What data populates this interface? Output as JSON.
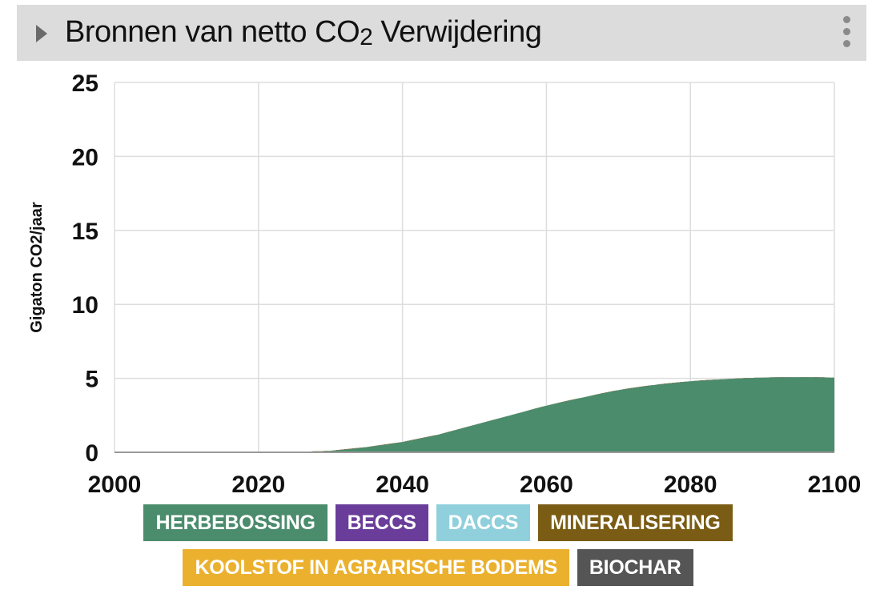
{
  "header": {
    "title_main": "Bronnen van netto CO",
    "title_sub": "2",
    "title_end": " Verwijdering"
  },
  "chart_data": {
    "type": "area",
    "title": "Bronnen van netto CO2 Verwijdering",
    "ylabel": "Gigaton CO2/jaar",
    "xlabel": "",
    "xlim": [
      2000,
      2100
    ],
    "ylim": [
      0,
      25
    ],
    "x_ticks": [
      2000,
      2020,
      2040,
      2060,
      2080,
      2100
    ],
    "y_ticks": [
      0,
      5,
      10,
      15,
      20,
      25
    ],
    "grid": true,
    "legend_position": "bottom",
    "x": [
      2000,
      2010,
      2020,
      2025,
      2030,
      2035,
      2040,
      2045,
      2050,
      2055,
      2060,
      2065,
      2070,
      2075,
      2080,
      2085,
      2090,
      2095,
      2100
    ],
    "series": [
      {
        "name": "HERBEBOSSING",
        "color": "#4a8c6c",
        "values": [
          0,
          0,
          0,
          0.02,
          0.1,
          0.35,
          0.7,
          1.2,
          1.85,
          2.5,
          3.15,
          3.7,
          4.2,
          4.55,
          4.8,
          4.95,
          5.05,
          5.08,
          5.05
        ]
      },
      {
        "name": "BECCS",
        "color": "#6a3d9a",
        "values": [
          0,
          0,
          0,
          0,
          0,
          0,
          0,
          0,
          0,
          0,
          0,
          0,
          0,
          0,
          0,
          0,
          0,
          0,
          0
        ]
      },
      {
        "name": "DACCS",
        "color": "#8fd0dc",
        "values": [
          0,
          0,
          0,
          0,
          0,
          0,
          0,
          0,
          0,
          0,
          0,
          0,
          0,
          0,
          0,
          0,
          0,
          0,
          0
        ]
      },
      {
        "name": "MINERALISERING",
        "color": "#7a5c14",
        "values": [
          0,
          0,
          0,
          0,
          0,
          0,
          0,
          0,
          0,
          0,
          0,
          0,
          0,
          0,
          0,
          0,
          0,
          0,
          0
        ]
      },
      {
        "name": "KOOLSTOF IN AGRARISCHE BODEMS",
        "color": "#ebb12e",
        "values": [
          0,
          0,
          0,
          0,
          0,
          0,
          0,
          0,
          0,
          0,
          0,
          0,
          0,
          0,
          0,
          0,
          0,
          0,
          0
        ]
      },
      {
        "name": "BIOCHAR",
        "color": "#555555",
        "values": [
          0,
          0,
          0,
          0,
          0,
          0,
          0,
          0,
          0,
          0,
          0,
          0,
          0,
          0,
          0,
          0,
          0,
          0,
          0
        ]
      }
    ]
  },
  "legend_rows": [
    [
      "HERBEBOSSING",
      "BECCS",
      "DACCS",
      "MINERALISERING"
    ],
    [
      "KOOLSTOF IN AGRARISCHE BODEMS",
      "BIOCHAR"
    ]
  ]
}
